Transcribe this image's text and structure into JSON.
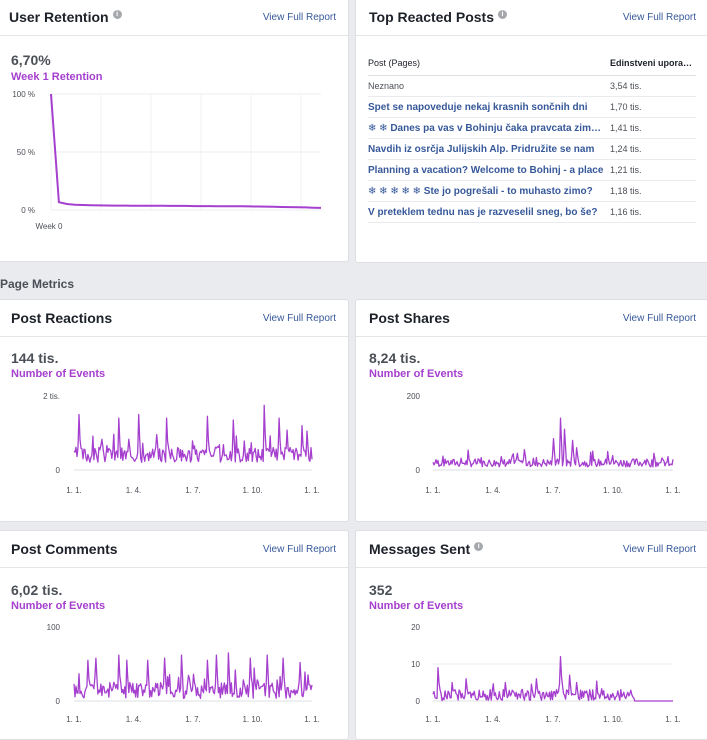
{
  "section_title": "Page Metrics",
  "view_full_report": "View Full Report",
  "retention": {
    "title": "User Retention",
    "value": "6,70%",
    "label": "Week 1 Retention",
    "chart_data": {
      "type": "line",
      "y_ticks": [
        "100 %",
        "50 %",
        "0 %"
      ],
      "x_ticks": [
        "Week 0"
      ],
      "ylim": [
        0,
        100
      ],
      "values": [
        100,
        6.7,
        5.2,
        4.6,
        4.3,
        4.1,
        4.0,
        3.9,
        3.8,
        3.8,
        3.7,
        3.7,
        3.6,
        3.6,
        3.6,
        3.5,
        3.5,
        3.5,
        3.4,
        3.4,
        3.4,
        3.3,
        3.3,
        3.2,
        3.2,
        3.1,
        3.0,
        2.9,
        2.8,
        2.6,
        2.5,
        2.4,
        2.2,
        2.0,
        1.8
      ],
      "color": "#a53fce"
    }
  },
  "top_posts": {
    "title": "Top Reacted Posts",
    "col_post": "Post (Pages)",
    "col_value": "Edinstveni uporabniki",
    "rows": [
      {
        "text": "Neznano",
        "value": "3,54 tis.",
        "plain": true,
        "prefix": ""
      },
      {
        "text": "Spet se napoveduje nekaj krasnih sončnih dni",
        "value": "1,70 tis.",
        "plain": false,
        "prefix": ""
      },
      {
        "text": "Danes pa vas v Bohinju čaka pravcata zimska pravljica",
        "value": "1,41 tis.",
        "plain": false,
        "prefix": "❄ ❄"
      },
      {
        "text": "Navdih iz osrčja Julijskih Alp. Pridružite se nam",
        "value": "1,24 tis.",
        "plain": false,
        "prefix": ""
      },
      {
        "text": "Planning a vacation? Welcome to Bohinj - a place",
        "value": "1,21 tis.",
        "plain": false,
        "prefix": ""
      },
      {
        "text": "Ste jo pogrešali - to muhasto zimo?",
        "value": "1,18 tis.",
        "plain": false,
        "prefix": "❄ ❄ ❄ ❄ ❄"
      },
      {
        "text": "V preteklem tednu nas je razveselil sneg, bo še?",
        "value": "1,16 tis.",
        "plain": false,
        "prefix": ""
      }
    ]
  },
  "post_reactions": {
    "title": "Post Reactions",
    "value": "144 tis.",
    "label": "Number of Events",
    "chart_data": {
      "type": "line",
      "y_ticks": [
        "2 tis.",
        "0"
      ],
      "x_ticks": [
        "1. 1.",
        "1. 4.",
        "1. 7.",
        "1. 10.",
        "1. 1."
      ],
      "ylim": [
        0,
        2000
      ],
      "base": 330,
      "amp": 430,
      "spikes": [
        [
          0.02,
          1500
        ],
        [
          0.19,
          1400
        ],
        [
          0.27,
          1500
        ],
        [
          0.39,
          1400
        ],
        [
          0.56,
          1450
        ],
        [
          0.67,
          1350
        ],
        [
          0.8,
          1750
        ],
        [
          0.86,
          1400
        ],
        [
          0.96,
          1200
        ],
        [
          0.98,
          1050
        ]
      ],
      "seed": 3,
      "color": "#a53fce"
    }
  },
  "post_shares": {
    "title": "Post Shares",
    "value": "8,24 tis.",
    "label": "Number of Events",
    "chart_data": {
      "type": "line",
      "y_ticks": [
        "200",
        "0"
      ],
      "x_ticks": [
        "1. 1.",
        "1. 4.",
        "1. 7.",
        "1. 10.",
        "1. 1."
      ],
      "ylim": [
        0,
        200
      ],
      "base": 15,
      "amp": 22,
      "spikes": [
        [
          0.35,
          45
        ],
        [
          0.38,
          55
        ],
        [
          0.5,
          85
        ],
        [
          0.53,
          140
        ],
        [
          0.55,
          110
        ],
        [
          0.58,
          80
        ],
        [
          0.6,
          60
        ],
        [
          0.73,
          50
        ],
        [
          0.85,
          30
        ],
        [
          0.92,
          45
        ]
      ],
      "seed": 7,
      "color": "#a53fce"
    }
  },
  "post_comments": {
    "title": "Post Comments",
    "value": "6,02 tis.",
    "label": "Number of Events",
    "chart_data": {
      "type": "line",
      "y_ticks": [
        "100",
        "0"
      ],
      "x_ticks": [
        "1. 1.",
        "1. 4.",
        "1. 7.",
        "1. 10.",
        "1. 1."
      ],
      "ylim": [
        0,
        100
      ],
      "base": 10,
      "amp": 22,
      "spikes": [
        [
          0.06,
          55
        ],
        [
          0.09,
          58
        ],
        [
          0.19,
          62
        ],
        [
          0.22,
          55
        ],
        [
          0.31,
          55
        ],
        [
          0.38,
          58
        ],
        [
          0.45,
          62
        ],
        [
          0.56,
          55
        ],
        [
          0.6,
          62
        ],
        [
          0.65,
          65
        ],
        [
          0.74,
          58
        ],
        [
          0.81,
          62
        ],
        [
          0.88,
          58
        ],
        [
          0.95,
          52
        ]
      ],
      "seed": 11,
      "color": "#a53fce"
    }
  },
  "messages_sent": {
    "title": "Messages Sent",
    "value": "352",
    "label": "Number of Events",
    "chart_data": {
      "type": "line",
      "y_ticks": [
        "20",
        "10",
        "0"
      ],
      "x_ticks": [
        "1. 1.",
        "1. 4.",
        "1. 7.",
        "1. 10.",
        "1. 1."
      ],
      "ylim": [
        0,
        20
      ],
      "base": 1,
      "amp": 3,
      "spikes": [
        [
          0.02,
          9
        ],
        [
          0.08,
          5
        ],
        [
          0.14,
          6
        ],
        [
          0.3,
          5
        ],
        [
          0.43,
          6
        ],
        [
          0.53,
          12
        ],
        [
          0.57,
          7
        ],
        [
          0.6,
          5
        ]
      ],
      "seed": 19,
      "cutoff": 0.84,
      "color": "#a53fce"
    }
  }
}
